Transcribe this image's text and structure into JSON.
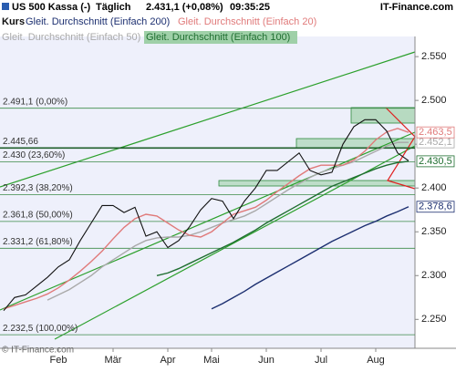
{
  "chart_data": {
    "type": "line",
    "header": {
      "symbol": "US 500 Kassa (-)",
      "interval": "Täglich",
      "price": "2.431,1 (+0,08%)",
      "time": "09:35:25",
      "brand": "IT-Finance.com"
    },
    "copyright": "© IT-Finance.com",
    "categories": [
      null,
      null,
      null,
      null,
      null,
      "Feb",
      null,
      null,
      null,
      null,
      "Mär",
      null,
      null,
      null,
      null,
      "Apr",
      null,
      null,
      null,
      "Mai",
      null,
      null,
      null,
      null,
      "Jun",
      null,
      null,
      null,
      null,
      "Jul",
      null,
      null,
      null,
      null,
      "Aug",
      null,
      null,
      null
    ],
    "series": [
      {
        "name": "Kurs",
        "color": "#111111",
        "values": [
          2260,
          2275,
          2278,
          2288,
          2298,
          2310,
          2318,
          2340,
          2360,
          2380,
          2380,
          2372,
          2378,
          2345,
          2350,
          2332,
          2340,
          2356,
          2375,
          2388,
          2385,
          2365,
          2385,
          2400,
          2420,
          2420,
          2430,
          2440,
          2420,
          2415,
          2418,
          2450,
          2470,
          2478,
          2478,
          2465,
          2440,
          2431.1
        ]
      },
      {
        "name": "Gleit. Durchschnitt (Einfach 200)",
        "color": "#1c2f70",
        "values": [
          null,
          null,
          null,
          null,
          null,
          null,
          null,
          null,
          null,
          null,
          null,
          null,
          null,
          null,
          null,
          null,
          null,
          null,
          null,
          2262,
          2268,
          2275,
          2282,
          2290,
          2297,
          2304,
          2311,
          2318,
          2325,
          2332,
          2339,
          2345,
          2351,
          2357,
          2362,
          2368,
          2373,
          2378.6
        ],
        "value_labels": [
          null,
          null,
          null,
          null,
          null,
          null,
          null,
          null,
          null,
          null,
          null,
          null,
          null,
          null,
          null,
          null,
          null,
          null,
          null,
          null,
          null,
          null,
          null,
          null,
          null,
          null,
          null,
          null,
          null,
          null,
          null,
          null,
          null,
          null,
          null,
          null,
          null,
          "2.378,6"
        ]
      },
      {
        "name": "Gleit. Durchschnitt (Einfach 20)",
        "color": "#e07a7a",
        "values": [
          2262,
          2266,
          2270,
          2274,
          2279,
          2286,
          2295,
          2305,
          2316,
          2328,
          2342,
          2355,
          2365,
          2370,
          2368,
          2360,
          2352,
          2346,
          2344,
          2350,
          2360,
          2370,
          2374,
          2378,
          2386,
          2396,
          2405,
          2414,
          2422,
          2426,
          2426,
          2426,
          2432,
          2442,
          2455,
          2464,
          2468,
          2463.5
        ],
        "value_labels": [
          null,
          null,
          null,
          null,
          null,
          null,
          null,
          null,
          null,
          null,
          null,
          null,
          null,
          null,
          null,
          null,
          null,
          null,
          null,
          null,
          null,
          null,
          null,
          null,
          null,
          null,
          null,
          null,
          null,
          null,
          null,
          null,
          null,
          null,
          null,
          null,
          null,
          "2.463,5"
        ]
      },
      {
        "name": "Gleit. Durchschnitt (Einfach 50)",
        "color": "#a9a9a9",
        "values": [
          null,
          null,
          null,
          null,
          2272,
          2278,
          2284,
          2292,
          2300,
          2310,
          2318,
          2326,
          2334,
          2340,
          2343,
          2344,
          2344,
          2346,
          2350,
          2355,
          2360,
          2364,
          2368,
          2374,
          2382,
          2390,
          2398,
          2405,
          2412,
          2418,
          2422,
          2426,
          2430,
          2436,
          2442,
          2448,
          2452,
          2452.1
        ],
        "value_labels": [
          null,
          null,
          null,
          null,
          null,
          null,
          null,
          null,
          null,
          null,
          null,
          null,
          null,
          null,
          null,
          null,
          null,
          null,
          null,
          null,
          null,
          null,
          null,
          null,
          null,
          null,
          null,
          null,
          null,
          null,
          null,
          null,
          null,
          null,
          null,
          null,
          null,
          "2.452,1"
        ]
      },
      {
        "name": "Gleit. Durchschnitt (Einfach 100)",
        "color": "#1f6e30",
        "values": [
          null,
          null,
          null,
          null,
          null,
          null,
          null,
          null,
          null,
          null,
          null,
          null,
          null,
          null,
          2300,
          2303,
          2308,
          2314,
          2320,
          2326,
          2332,
          2338,
          2345,
          2352,
          2360,
          2367,
          2374,
          2381,
          2388,
          2395,
          2402,
          2407,
          2412,
          2417,
          2422,
          2426,
          2429,
          2430.5
        ],
        "value_labels": [
          null,
          null,
          null,
          null,
          null,
          null,
          null,
          null,
          null,
          null,
          null,
          null,
          null,
          null,
          null,
          null,
          null,
          null,
          null,
          null,
          null,
          null,
          null,
          null,
          null,
          null,
          null,
          null,
          null,
          null,
          null,
          null,
          null,
          null,
          null,
          null,
          null,
          "2.430,5"
        ]
      }
    ],
    "levels": [
      {
        "value": 2491.1,
        "label": "2.491,1 (0,00%)"
      },
      {
        "value": 2445.66,
        "label": "2.445,66"
      },
      {
        "value": 2430,
        "label": "2.430 (23,60%)"
      },
      {
        "value": 2392.3,
        "label": "2.392,3 (38,20%)"
      },
      {
        "value": 2361.8,
        "label": "2.361,8 (50,00%)"
      },
      {
        "value": 2331.2,
        "label": "2.331,2 (61,80%)"
      },
      {
        "value": 2232.5,
        "label": "2.232,5 (100,00%)"
      }
    ],
    "ylim": [
      2217,
      2573
    ],
    "yticks": [
      {
        "value": 2250,
        "label": "2.250"
      },
      {
        "value": 2300,
        "label": "2.300"
      },
      {
        "value": 2350,
        "label": "2.350"
      },
      {
        "value": 2400,
        "label": "2.400"
      },
      {
        "value": 2450,
        "label": "2.450"
      },
      {
        "value": 2500,
        "label": "2.500"
      },
      {
        "value": 2550,
        "label": "2.550"
      }
    ],
    "grid": false
  }
}
